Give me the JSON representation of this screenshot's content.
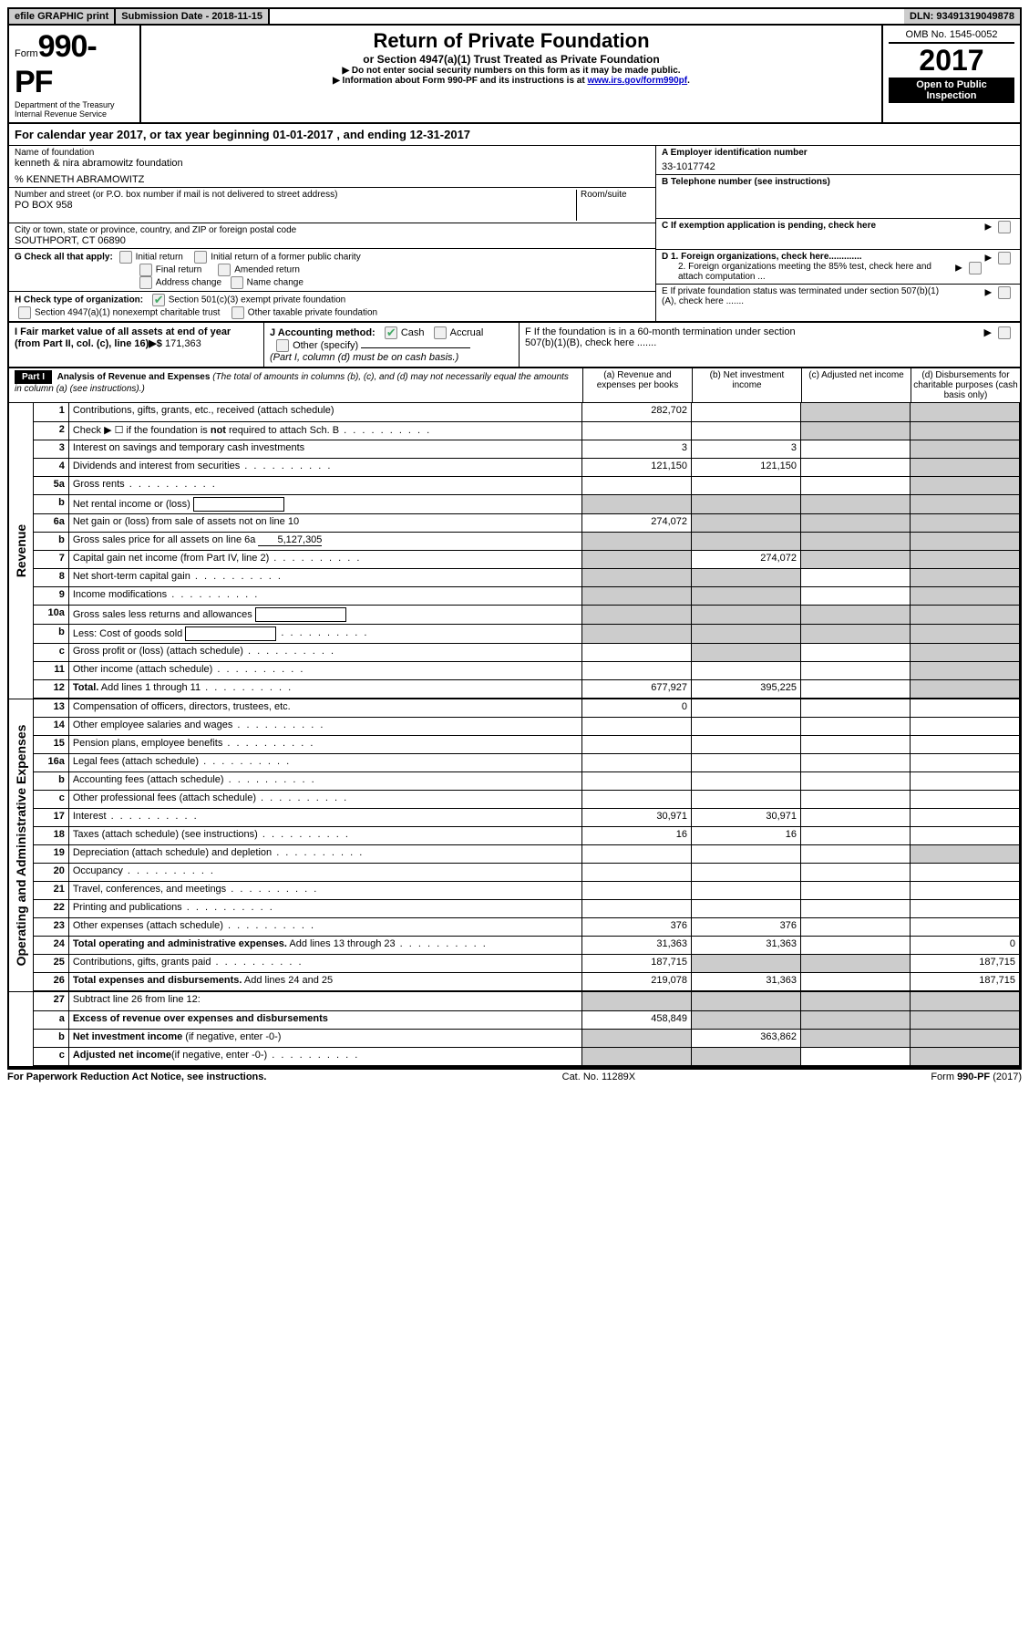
{
  "topbar": {
    "efile": "efile GRAPHIC print",
    "submission": "Submission Date - 2018-11-15",
    "dln": "DLN: 93491319049878"
  },
  "header": {
    "form_label": "Form",
    "form_no": "990-PF",
    "dept1": "Department of the Treasury",
    "dept2": "Internal Revenue Service",
    "title": "Return of Private Foundation",
    "subtitle": "or Section 4947(a)(1) Trust Treated as Private Foundation",
    "instr1": "▶ Do not enter social security numbers on this form as it may be made public.",
    "instr2_pre": "▶ Information about Form 990-PF and its instructions is at ",
    "instr2_link": "www.irs.gov/form990pf",
    "omb": "OMB No. 1545-0052",
    "year": "2017",
    "open": "Open to Public Inspection"
  },
  "calyear": {
    "pre": "For calendar year 2017, or tax year beginning ",
    "begin": "01-01-2017",
    "mid": " , and ending ",
    "end": "12-31-2017"
  },
  "id": {
    "name_lbl": "Name of foundation",
    "name": "kenneth & nira abramowitz foundation",
    "care": "% KENNETH ABRAMOWITZ",
    "addr_lbl": "Number and street (or P.O. box number if mail is not delivered to street address)",
    "room_lbl": "Room/suite",
    "addr": "PO BOX 958",
    "city_lbl": "City or town, state or province, country, and ZIP or foreign postal code",
    "city": "SOUTHPORT, CT  06890",
    "ein_lbl": "A Employer identification number",
    "ein": "33-1017742",
    "tel_lbl": "B Telephone number (see instructions)",
    "c_lbl": "C If exemption application is pending, check here",
    "g_lbl": "G Check all that apply:",
    "g1": "Initial return",
    "g2": "Initial return of a former public charity",
    "g3": "Final return",
    "g4": "Amended return",
    "g5": "Address change",
    "g6": "Name change",
    "h_lbl": "H Check type of organization:",
    "h1": "Section 501(c)(3) exempt private foundation",
    "h2": "Section 4947(a)(1) nonexempt charitable trust",
    "h3": "Other taxable private foundation",
    "d1": "D 1. Foreign organizations, check here.............",
    "d2": "2. Foreign organizations meeting the 85% test, check here and attach computation ...",
    "e": "E  If private foundation status was terminated under section 507(b)(1)(A), check here .......",
    "i_lbl": "I Fair market value of all assets at end of year (from Part II, col. (c), line 16)▶$",
    "i_val": "171,363",
    "j_lbl": "J Accounting method:",
    "j1": "Cash",
    "j2": "Accrual",
    "j3": "Other (specify)",
    "j_note": "(Part I, column (d) must be on cash basis.)",
    "f": "F  If the foundation is in a 60-month termination under section 507(b)(1)(B), check here ......."
  },
  "part1": {
    "hdr": "Part I",
    "title": "Analysis of Revenue and Expenses",
    "note": "(The total of amounts in columns (b), (c), and (d) may not necessarily equal the amounts in column (a) (see instructions).)",
    "col_a": "(a)   Revenue and expenses per books",
    "col_b": "(b)  Net investment income",
    "col_c": "(c)  Adjusted net income",
    "col_d": "(d)  Disbursements for charitable purposes (cash basis only)"
  },
  "sections": {
    "revenue": "Revenue",
    "opex": "Operating and Administrative Expenses"
  },
  "rows": [
    {
      "n": "1",
      "d": "Contributions, gifts, grants, etc., received (attach schedule)",
      "a": "282,702",
      "b": "",
      "c": "s",
      "ds": "s"
    },
    {
      "n": "2",
      "d": "Check ▶ ☐ if the foundation is <b>not</b> required to attach Sch. B",
      "dots": true,
      "a": "",
      "b": "",
      "c": "s",
      "ds": "s"
    },
    {
      "n": "3",
      "d": "Interest on savings and temporary cash investments",
      "a": "3",
      "b": "3",
      "c": "",
      "ds": "s"
    },
    {
      "n": "4",
      "d": "Dividends and interest from securities",
      "dots": true,
      "a": "121,150",
      "b": "121,150",
      "c": "",
      "ds": "s"
    },
    {
      "n": "5a",
      "d": "Gross rents",
      "dots": true,
      "a": "",
      "b": "",
      "c": "",
      "ds": "s"
    },
    {
      "n": "b",
      "d": "Net rental income or (loss)",
      "box": true,
      "a": "s",
      "b": "s",
      "c": "s",
      "ds": "s"
    },
    {
      "n": "6a",
      "d": "Net gain or (loss) from sale of assets not on line 10",
      "a": "274,072",
      "b": "s",
      "c": "s",
      "ds": "s"
    },
    {
      "n": "b",
      "d": "Gross sales price for all assets on line 6a",
      "ul": "5,127,305",
      "a": "s",
      "b": "s",
      "c": "s",
      "ds": "s"
    },
    {
      "n": "7",
      "d": "Capital gain net income (from Part IV, line 2)",
      "dots": true,
      "a": "s",
      "b": "274,072",
      "c": "s",
      "ds": "s"
    },
    {
      "n": "8",
      "d": "Net short-term capital gain",
      "dots": true,
      "a": "s",
      "b": "s",
      "c": "",
      "ds": "s"
    },
    {
      "n": "9",
      "d": "Income modifications",
      "dots": true,
      "a": "s",
      "b": "s",
      "c": "",
      "ds": "s"
    },
    {
      "n": "10a",
      "d": "Gross sales less returns and allowances",
      "box": true,
      "a": "s",
      "b": "s",
      "c": "s",
      "ds": "s"
    },
    {
      "n": "b",
      "d": "Less: Cost of goods sold",
      "dots": true,
      "box": true,
      "a": "s",
      "b": "s",
      "c": "s",
      "ds": "s"
    },
    {
      "n": "c",
      "d": "Gross profit or (loss) (attach schedule)",
      "dots": true,
      "a": "",
      "b": "s",
      "c": "",
      "ds": "s"
    },
    {
      "n": "11",
      "d": "Other income (attach schedule)",
      "dots": true,
      "a": "",
      "b": "",
      "c": "",
      "ds": "s"
    },
    {
      "n": "12",
      "d": "<b>Total.</b> Add lines 1 through 11",
      "dots": true,
      "a": "677,927",
      "b": "395,225",
      "c": "",
      "ds": "s"
    }
  ],
  "oprows": [
    {
      "n": "13",
      "d": "Compensation of officers, directors, trustees, etc.",
      "a": "0",
      "b": "",
      "c": "",
      "ds": ""
    },
    {
      "n": "14",
      "d": "Other employee salaries and wages",
      "dots": true,
      "a": "",
      "b": "",
      "c": "",
      "ds": ""
    },
    {
      "n": "15",
      "d": "Pension plans, employee benefits",
      "dots": true,
      "a": "",
      "b": "",
      "c": "",
      "ds": ""
    },
    {
      "n": "16a",
      "d": "Legal fees (attach schedule)",
      "dots": true,
      "a": "",
      "b": "",
      "c": "",
      "ds": ""
    },
    {
      "n": "b",
      "d": "Accounting fees (attach schedule)",
      "dots": true,
      "a": "",
      "b": "",
      "c": "",
      "ds": ""
    },
    {
      "n": "c",
      "d": "Other professional fees (attach schedule)",
      "dots": true,
      "a": "",
      "b": "",
      "c": "",
      "ds": ""
    },
    {
      "n": "17",
      "d": "Interest",
      "dots": true,
      "a": "30,971",
      "b": "30,971",
      "c": "",
      "ds": ""
    },
    {
      "n": "18",
      "d": "Taxes (attach schedule) (see instructions)",
      "dots": true,
      "a": "16",
      "b": "16",
      "c": "",
      "ds": ""
    },
    {
      "n": "19",
      "d": "Depreciation (attach schedule) and depletion",
      "dots": true,
      "a": "",
      "b": "",
      "c": "",
      "ds": "s"
    },
    {
      "n": "20",
      "d": "Occupancy",
      "dots": true,
      "a": "",
      "b": "",
      "c": "",
      "ds": ""
    },
    {
      "n": "21",
      "d": "Travel, conferences, and meetings",
      "dots": true,
      "a": "",
      "b": "",
      "c": "",
      "ds": ""
    },
    {
      "n": "22",
      "d": "Printing and publications",
      "dots": true,
      "a": "",
      "b": "",
      "c": "",
      "ds": ""
    },
    {
      "n": "23",
      "d": "Other expenses (attach schedule)",
      "dots": true,
      "a": "376",
      "b": "376",
      "c": "",
      "ds": ""
    },
    {
      "n": "24",
      "d": "<b>Total operating and administrative expenses.</b> Add lines 13 through 23",
      "dots": true,
      "a": "31,363",
      "b": "31,363",
      "c": "",
      "ds": "0"
    },
    {
      "n": "25",
      "d": "Contributions, gifts, grants paid",
      "dots": true,
      "a": "187,715",
      "b": "s",
      "c": "s",
      "ds": "187,715"
    },
    {
      "n": "26",
      "d": "<b>Total expenses and disbursements.</b> Add lines 24 and 25",
      "a": "219,078",
      "b": "31,363",
      "c": "",
      "ds": "187,715"
    }
  ],
  "botrows": [
    {
      "n": "27",
      "d": "Subtract line 26 from line 12:",
      "a": "s",
      "b": "s",
      "c": "s",
      "ds": "s"
    },
    {
      "n": "a",
      "d": "<b>Excess of revenue over expenses and disbursements</b>",
      "a": "458,849",
      "b": "s",
      "c": "s",
      "ds": "s"
    },
    {
      "n": "b",
      "d": "<b>Net investment income</b> (if negative, enter -0-)",
      "a": "s",
      "b": "363,862",
      "c": "s",
      "ds": "s"
    },
    {
      "n": "c",
      "d": "<b>Adjusted net income</b>(if negative, enter -0-)",
      "dots": true,
      "a": "s",
      "b": "s",
      "c": "",
      "ds": "s"
    }
  ],
  "footer": {
    "left": "For Paperwork Reduction Act Notice, see instructions.",
    "mid": "Cat. No. 11289X",
    "right_pre": "Form ",
    "right_form": "990-PF",
    "right_yr": " (2017)"
  }
}
